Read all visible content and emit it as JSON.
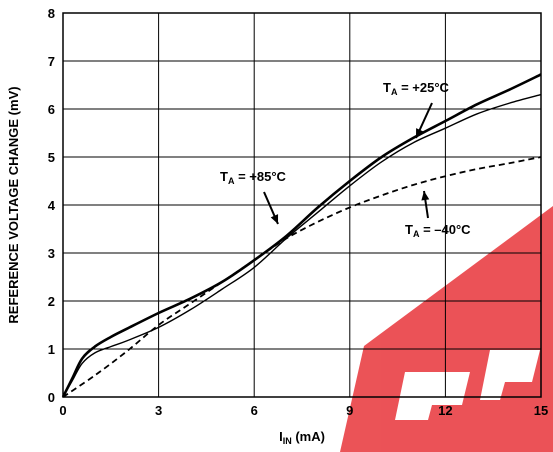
{
  "chart_data": {
    "type": "line",
    "title": "",
    "xlabel": {
      "main": "I",
      "sub": "IN",
      "unit": " (mA)"
    },
    "ylabel": "REFERENCE VOLTAGE CHANGE (mV)",
    "xlim": [
      0,
      15
    ],
    "ylim": [
      0,
      8
    ],
    "xticks": [
      "0",
      "3",
      "6",
      "9",
      "12",
      "15"
    ],
    "yticks": [
      "0",
      "1",
      "2",
      "3",
      "4",
      "5",
      "6",
      "7",
      "8"
    ],
    "grid": true,
    "series": [
      {
        "name": {
          "main": "T",
          "sub": "A",
          "rest": " = +25°C"
        },
        "style": "solid-thick",
        "x": [
          0,
          0.3,
          0.6,
          1,
          1.5,
          2,
          3,
          4,
          5,
          6,
          7,
          8,
          9,
          10,
          11,
          12,
          13,
          14,
          15
        ],
        "y": [
          0,
          0.4,
          0.8,
          1.05,
          1.25,
          1.42,
          1.75,
          2.05,
          2.4,
          2.85,
          3.35,
          3.95,
          4.5,
          5.0,
          5.4,
          5.75,
          6.1,
          6.4,
          6.72
        ]
      },
      {
        "name": {
          "main": "T",
          "sub": "A",
          "rest": " = +85°C"
        },
        "style": "solid-thin",
        "x": [
          0,
          0.3,
          0.6,
          1,
          1.5,
          2,
          3,
          4,
          5,
          6,
          7,
          8,
          9,
          10,
          11,
          12,
          13,
          14,
          15
        ],
        "y": [
          0,
          0.35,
          0.7,
          0.92,
          1.05,
          1.17,
          1.45,
          1.82,
          2.25,
          2.7,
          3.3,
          3.85,
          4.4,
          4.9,
          5.3,
          5.6,
          5.9,
          6.12,
          6.3
        ]
      },
      {
        "name": {
          "main": "T",
          "sub": "A",
          "rest": " = –40°C"
        },
        "style": "dashed",
        "x": [
          0,
          1,
          2,
          3,
          4,
          5,
          6,
          7,
          8,
          9,
          10,
          11,
          12,
          13,
          14,
          15
        ],
        "y": [
          0,
          0.45,
          0.95,
          1.5,
          1.95,
          2.4,
          2.85,
          3.3,
          3.65,
          3.95,
          4.2,
          4.42,
          4.6,
          4.75,
          4.87,
          5.0
        ]
      }
    ]
  }
}
